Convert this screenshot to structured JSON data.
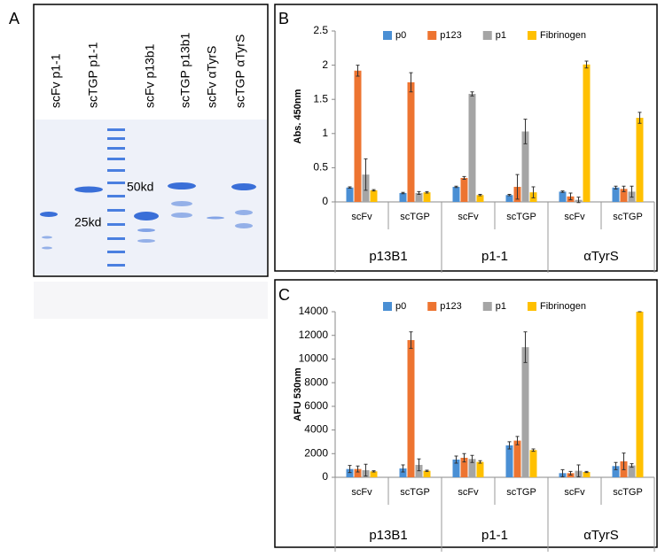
{
  "panel_labels": [
    "A",
    "B",
    "C"
  ],
  "gel": {
    "lanes": [
      "scFv p1-1",
      "scTGP p1-1",
      "scFv p13b1",
      "scTGP p13b1",
      "scFv αTyrS",
      "scTGP αTyrS"
    ],
    "markers": [
      "50kd",
      "25kd"
    ]
  },
  "chart_data": [
    {
      "type": "bar",
      "ylabel": "Abs. 450nm",
      "ylim": [
        0,
        2.5
      ],
      "yticks": [
        0,
        0.5,
        1,
        1.5,
        2,
        2.5
      ],
      "categories": [
        "scFv",
        "scTGP",
        "scFv",
        "scTGP",
        "scFv",
        "scTGP"
      ],
      "groups": [
        "p13B1",
        "p1-1",
        "αTyrS"
      ],
      "legend": "top",
      "series": [
        {
          "name": "p0",
          "color": "#4a8fd4",
          "values": [
            0.21,
            0.13,
            0.22,
            0.1,
            0.15,
            0.21
          ],
          "errors": [
            0.01,
            0.01,
            0.01,
            0.01,
            0.01,
            0.02
          ]
        },
        {
          "name": "p123",
          "color": "#ed7431",
          "values": [
            1.92,
            1.75,
            0.35,
            0.22,
            0.08,
            0.19
          ],
          "errors": [
            0.08,
            0.14,
            0.02,
            0.18,
            0.05,
            0.04
          ]
        },
        {
          "name": "p1",
          "color": "#a5a5a5",
          "values": [
            0.4,
            0.13,
            1.58,
            1.03,
            0.03,
            0.15
          ],
          "errors": [
            0.23,
            0.02,
            0.03,
            0.18,
            0.04,
            0.08
          ]
        },
        {
          "name": "Fibrinogen",
          "color": "#ffc000",
          "values": [
            0.17,
            0.14,
            0.1,
            0.14,
            2.01,
            1.23
          ],
          "errors": [
            0.01,
            0.01,
            0.01,
            0.08,
            0.05,
            0.08
          ]
        }
      ]
    },
    {
      "type": "bar",
      "ylabel": "AFU 530nm",
      "ylim": [
        0,
        14000
      ],
      "yticks": [
        0,
        2000,
        4000,
        6000,
        8000,
        10000,
        12000,
        14000
      ],
      "categories": [
        "scFv",
        "scTGP",
        "scFv",
        "scTGP",
        "scFv",
        "scTGP"
      ],
      "groups": [
        "p13B1",
        "p1-1",
        "αTyrS"
      ],
      "legend": "top",
      "series": [
        {
          "name": "p0",
          "color": "#4a8fd4",
          "values": [
            700,
            750,
            1500,
            2700,
            350,
            950
          ],
          "errors": [
            300,
            300,
            300,
            300,
            300,
            300
          ]
        },
        {
          "name": "p123",
          "color": "#ed7431",
          "values": [
            700,
            11600,
            1650,
            3100,
            350,
            1350
          ],
          "errors": [
            250,
            700,
            350,
            350,
            150,
            700
          ]
        },
        {
          "name": "p1",
          "color": "#a5a5a5",
          "values": [
            600,
            1050,
            1550,
            11000,
            550,
            1000
          ],
          "errors": [
            500,
            500,
            300,
            1300,
            500,
            150
          ]
        },
        {
          "name": "Fibrinogen",
          "color": "#ffc000",
          "values": [
            500,
            550,
            1300,
            2300,
            450,
            14000
          ],
          "errors": [
            50,
            50,
            100,
            100,
            50,
            0
          ]
        }
      ]
    }
  ]
}
